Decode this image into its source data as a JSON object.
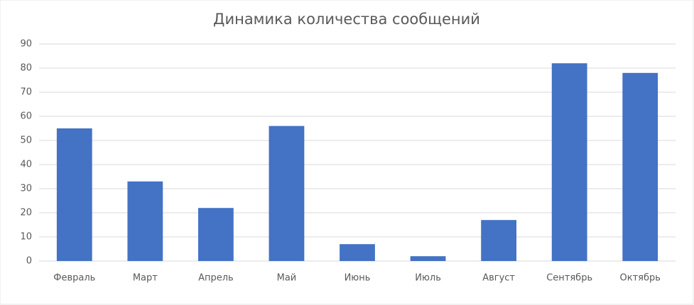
{
  "chart_data": {
    "type": "bar",
    "title": "Динамика количества сообщений",
    "categories": [
      "Февраль",
      "Март",
      "Апрель",
      "Май",
      "Июнь",
      "Июль",
      "Август",
      "Сентябрь",
      "Октябрь"
    ],
    "values": [
      55,
      33,
      22,
      56,
      7,
      2,
      17,
      82,
      78
    ],
    "color": "#4472c4",
    "ylim": [
      0,
      90
    ],
    "yticks": [
      0,
      10,
      20,
      30,
      40,
      50,
      60,
      70,
      80,
      90
    ],
    "grid": true
  }
}
